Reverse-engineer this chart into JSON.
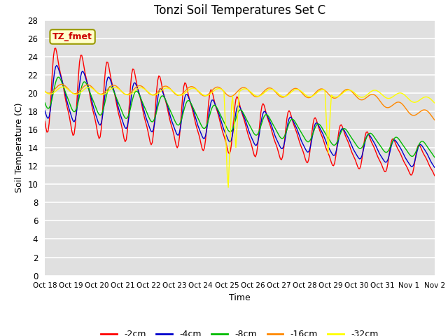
{
  "title": "Tonzi Soil Temperatures Set C",
  "xlabel": "Time",
  "ylabel": "Soil Temperature (C)",
  "ylim": [
    0,
    28
  ],
  "yticks": [
    0,
    2,
    4,
    6,
    8,
    10,
    12,
    14,
    16,
    18,
    20,
    22,
    24,
    26,
    28
  ],
  "xtick_labels": [
    "Oct 18",
    "Oct 19",
    "Oct 20",
    "Oct 21",
    "Oct 22",
    "Oct 23",
    "Oct 24",
    "Oct 25",
    "Oct 26",
    "Oct 27",
    "Oct 28",
    "Oct 29",
    "Oct 30",
    "Oct 31",
    "Nov 1",
    "Nov 2"
  ],
  "series_colors": [
    "#ff0000",
    "#0000cc",
    "#00bb00",
    "#ff8800",
    "#ffff00"
  ],
  "series_labels": [
    "-2cm",
    "-4cm",
    "-8cm",
    "-16cm",
    "-32cm"
  ],
  "annotation_text": "TZ_fmet",
  "plot_bg_color": "#e0e0e0",
  "grid_color": "white",
  "title_fontsize": 12
}
